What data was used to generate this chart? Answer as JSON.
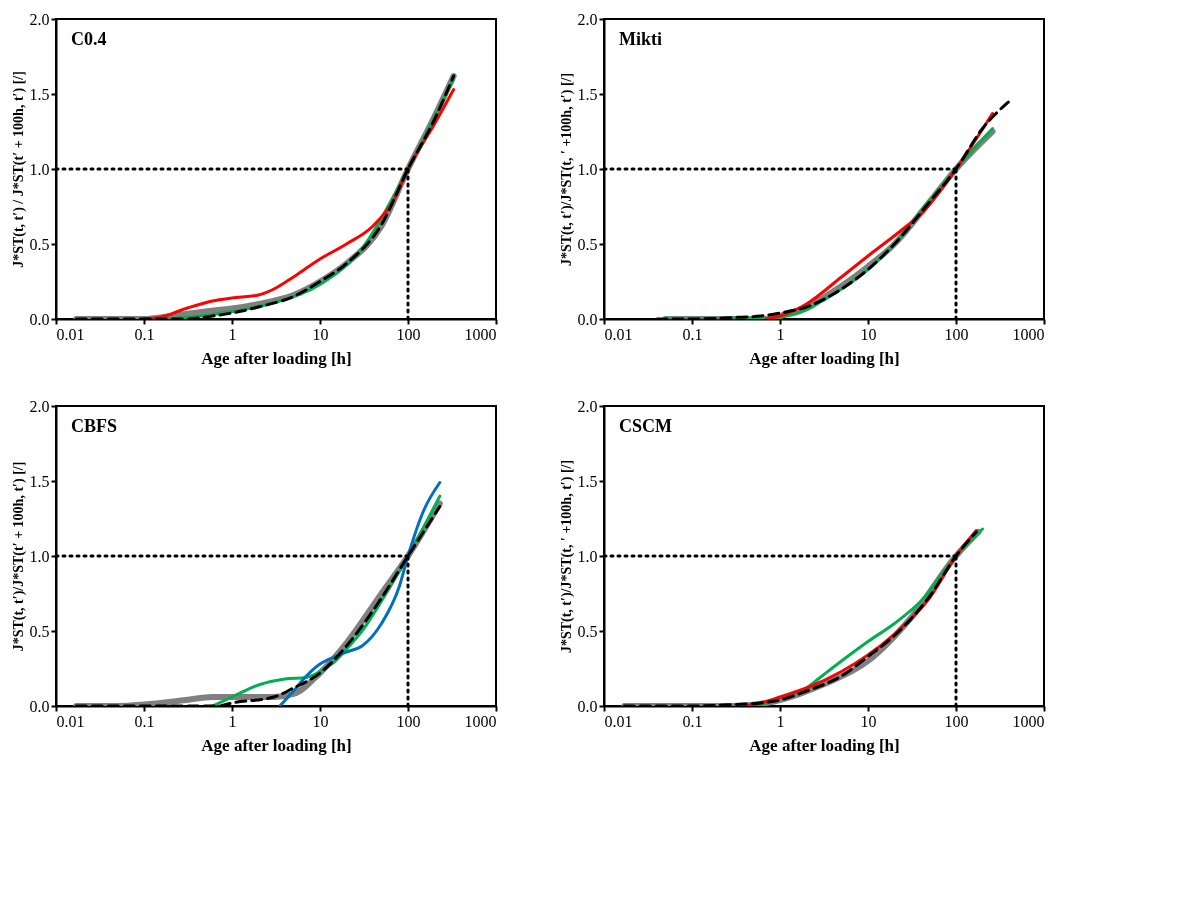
{
  "chart_data": [
    {
      "type": "line",
      "xlabel": "Age after loading [h]",
      "ylabel": "J*ST(t, t′) / J*ST(t′ + 100h, t′) [/]",
      "annotations": [
        "C0.4"
      ],
      "log": "x",
      "xlim": [
        0.01,
        1000
      ],
      "xticks": [
        0.01,
        0.1,
        1,
        10,
        100,
        1000
      ],
      "ylim": [
        0,
        2
      ],
      "yticks": [
        {
          "value": 0,
          "label": "0.0"
        },
        {
          "value": 0.5,
          "label": "0.5"
        },
        {
          "value": 1,
          "label": "1.0"
        },
        {
          "value": 1.5,
          "label": "1.5"
        },
        {
          "value": 2,
          "label": "2.0"
        }
      ],
      "grid": false,
      "legend": false,
      "ref_lines": [
        {
          "axis": "y",
          "value": 1,
          "line_style": "dotted",
          "color": "#000000"
        },
        {
          "axis": "x",
          "value": 100,
          "line_style": "dotted",
          "color": "#000000"
        }
      ],
      "series": [
        {
          "color": "#808080",
          "x": [
            0.017,
            0.05,
            0.1,
            0.2,
            0.5,
            1,
            2,
            5,
            10,
            20,
            50,
            100,
            200,
            330
          ],
          "values": [
            0,
            0,
            0,
            0.02,
            0.05,
            0.07,
            0.1,
            0.16,
            0.25,
            0.37,
            0.62,
            1.0,
            1.35,
            1.62
          ]
        },
        {
          "color": "#00b050",
          "x": [
            0.1,
            0.3,
            1,
            3,
            10,
            30,
            100,
            330
          ],
          "values": [
            0,
            0.01,
            0.05,
            0.11,
            0.23,
            0.47,
            1.0,
            1.6
          ]
        },
        {
          "color": "#ff0000",
          "x": [
            0.1,
            0.15,
            0.3,
            0.6,
            1,
            2,
            3,
            5,
            10,
            20,
            40,
            70,
            100,
            200,
            330
          ],
          "values": [
            0,
            0.01,
            0.07,
            0.12,
            0.14,
            0.16,
            0.2,
            0.28,
            0.4,
            0.5,
            0.62,
            0.8,
            1.0,
            1.3,
            1.53
          ]
        },
        {
          "color": "#000000",
          "line_style": "dashed",
          "x": [
            0.017,
            0.05,
            0.1,
            0.3,
            0.6,
            1,
            2,
            5,
            10,
            20,
            50,
            100,
            200,
            330
          ],
          "values": [
            0,
            0,
            0,
            0,
            0.02,
            0.04,
            0.08,
            0.15,
            0.25,
            0.37,
            0.63,
            1.0,
            1.33,
            1.62
          ]
        }
      ]
    },
    {
      "type": "line",
      "xlabel": "Age after loading [h]",
      "ylabel": "J*ST(t, t′)/J*ST(t, ′ +100h, t′) [/]",
      "annotations": [
        "Mikti"
      ],
      "log": "x",
      "xlim": [
        0.01,
        1000
      ],
      "xticks": [
        0.01,
        0.1,
        1,
        10,
        100,
        1000
      ],
      "ylim": [
        0,
        2
      ],
      "yticks": [
        {
          "value": 0,
          "label": "0.0"
        },
        {
          "value": 0.5,
          "label": "0.5"
        },
        {
          "value": 1,
          "label": "1.0"
        },
        {
          "value": 1.5,
          "label": "1.5"
        },
        {
          "value": 2,
          "label": "2.0"
        }
      ],
      "grid": false,
      "legend": false,
      "ref_lines": [
        {
          "axis": "y",
          "value": 1,
          "line_style": "dotted",
          "color": "#000000"
        },
        {
          "axis": "x",
          "value": 100,
          "line_style": "dotted",
          "color": "#000000"
        }
      ],
      "series": [
        {
          "color": "#808080",
          "x": [
            0.05,
            0.3,
            0.8,
            1,
            2,
            5,
            10,
            20,
            50,
            100,
            260
          ],
          "values": [
            0,
            0,
            0,
            0.02,
            0.08,
            0.22,
            0.35,
            0.5,
            0.78,
            1.0,
            1.25
          ]
        },
        {
          "color": "#00b050",
          "x": [
            0.05,
            0.1,
            0.3,
            0.7,
            1,
            2,
            3,
            5,
            10,
            20,
            40,
            100,
            260
          ],
          "values": [
            0,
            0,
            0,
            0,
            0.01,
            0.06,
            0.12,
            0.2,
            0.33,
            0.5,
            0.72,
            1.0,
            1.27
          ]
        },
        {
          "color": "#ff0000",
          "x": [
            0.7,
            1,
            1.5,
            2,
            5,
            10,
            25,
            40,
            100,
            260
          ],
          "values": [
            0,
            0.02,
            0.06,
            0.1,
            0.28,
            0.42,
            0.6,
            0.7,
            1.0,
            1.37
          ]
        },
        {
          "color": "#000000",
          "line_style": "dashed",
          "x": [
            0.04,
            0.1,
            0.3,
            0.6,
            1,
            2,
            5,
            10,
            20,
            50,
            100,
            200,
            400
          ],
          "values": [
            0,
            0,
            0.01,
            0.02,
            0.04,
            0.08,
            0.2,
            0.33,
            0.5,
            0.78,
            1.0,
            1.27,
            1.45
          ]
        }
      ]
    },
    {
      "type": "line",
      "xlabel": "Age after loading [h]",
      "ylabel": "J*ST(t, t′)/J*ST(t′ + 100h, t′) [/]",
      "annotations": [
        "CBFS"
      ],
      "log": "x",
      "xlim": [
        0.01,
        1000
      ],
      "xticks": [
        0.01,
        0.1,
        1,
        10,
        100,
        1000
      ],
      "ylim": [
        0,
        2
      ],
      "yticks": [
        {
          "value": 0,
          "label": "0.0"
        },
        {
          "value": 0.5,
          "label": "0.5"
        },
        {
          "value": 1,
          "label": "1.0"
        },
        {
          "value": 1.5,
          "label": "1.5"
        },
        {
          "value": 2,
          "label": "2.0"
        }
      ],
      "grid": false,
      "legend": false,
      "ref_lines": [
        {
          "axis": "y",
          "value": 1,
          "line_style": "dotted",
          "color": "#000000"
        },
        {
          "axis": "x",
          "value": 100,
          "line_style": "dotted",
          "color": "#000000"
        }
      ],
      "series": [
        {
          "color": "#808080",
          "x": [
            0.017,
            0.05,
            0.1,
            0.3,
            0.6,
            1,
            3,
            5,
            10,
            20,
            50,
            100,
            230
          ],
          "values": [
            0,
            0,
            0.01,
            0.04,
            0.06,
            0.06,
            0.06,
            0.08,
            0.22,
            0.42,
            0.75,
            1.0,
            1.35
          ]
        },
        {
          "color": "#00b050",
          "x": [
            0.6,
            1,
            2,
            4,
            7,
            10,
            15,
            20,
            30,
            50,
            100,
            230
          ],
          "values": [
            0,
            0.06,
            0.14,
            0.18,
            0.19,
            0.23,
            0.3,
            0.38,
            0.5,
            0.7,
            1.0,
            1.4
          ]
        },
        {
          "color": "#0070c0",
          "x": [
            3.5,
            5,
            7,
            10,
            15,
            20,
            30,
            50,
            80,
            100,
            150,
            230
          ],
          "values": [
            0,
            0.1,
            0.2,
            0.28,
            0.33,
            0.36,
            0.4,
            0.55,
            0.8,
            1.0,
            1.3,
            1.49
          ]
        },
        {
          "color": "#000000",
          "line_style": "dashed",
          "x": [
            0.017,
            0.1,
            0.3,
            0.7,
            1,
            3,
            5,
            10,
            20,
            50,
            100,
            230
          ],
          "values": [
            0,
            0,
            0,
            0,
            0.02,
            0.06,
            0.12,
            0.22,
            0.4,
            0.72,
            1.0,
            1.33
          ]
        }
      ]
    },
    {
      "type": "line",
      "xlabel": "Age after loading [h]",
      "ylabel": "J*ST(t, t′)/J*ST(t, ′ +100h, t′) [/]",
      "annotations": [
        "CSCM"
      ],
      "log": "x",
      "xlim": [
        0.01,
        1000
      ],
      "xticks": [
        0.01,
        0.1,
        1,
        10,
        100,
        1000
      ],
      "ylim": [
        0,
        2
      ],
      "yticks": [
        {
          "value": 0,
          "label": "0.0"
        },
        {
          "value": 0.5,
          "label": "0.5"
        },
        {
          "value": 1,
          "label": "1.0"
        },
        {
          "value": 1.5,
          "label": "1.5"
        },
        {
          "value": 2,
          "label": "2.0"
        }
      ],
      "grid": false,
      "legend": false,
      "ref_lines": [
        {
          "axis": "y",
          "value": 1,
          "line_style": "dotted",
          "color": "#000000"
        },
        {
          "axis": "x",
          "value": 100,
          "line_style": "dotted",
          "color": "#000000"
        }
      ],
      "series": [
        {
          "color": "#808080",
          "x": [
            0.017,
            0.1,
            0.3,
            1,
            3,
            10,
            30,
            100,
            180
          ],
          "values": [
            0,
            0,
            0,
            0.04,
            0.14,
            0.3,
            0.58,
            1.0,
            1.16
          ]
        },
        {
          "color": "#00b050",
          "x": [
            0.3,
            0.5,
            1,
            2,
            3,
            5,
            10,
            20,
            40,
            100,
            200
          ],
          "values": [
            0,
            0,
            0.05,
            0.12,
            0.2,
            0.3,
            0.43,
            0.55,
            0.7,
            1.0,
            1.18
          ]
        },
        {
          "color": "#ff0000",
          "x": [
            0.4,
            0.7,
            1,
            2,
            5,
            10,
            20,
            50,
            100,
            170
          ],
          "values": [
            0,
            0.03,
            0.06,
            0.12,
            0.23,
            0.34,
            0.48,
            0.72,
            1.0,
            1.17
          ]
        },
        {
          "color": "#000000",
          "line_style": "dashed",
          "x": [
            0.017,
            0.1,
            0.3,
            0.6,
            1,
            2,
            5,
            10,
            20,
            50,
            100,
            170
          ],
          "values": [
            0,
            0,
            0.01,
            0.02,
            0.04,
            0.1,
            0.2,
            0.33,
            0.47,
            0.73,
            1.0,
            1.16
          ]
        }
      ]
    }
  ]
}
